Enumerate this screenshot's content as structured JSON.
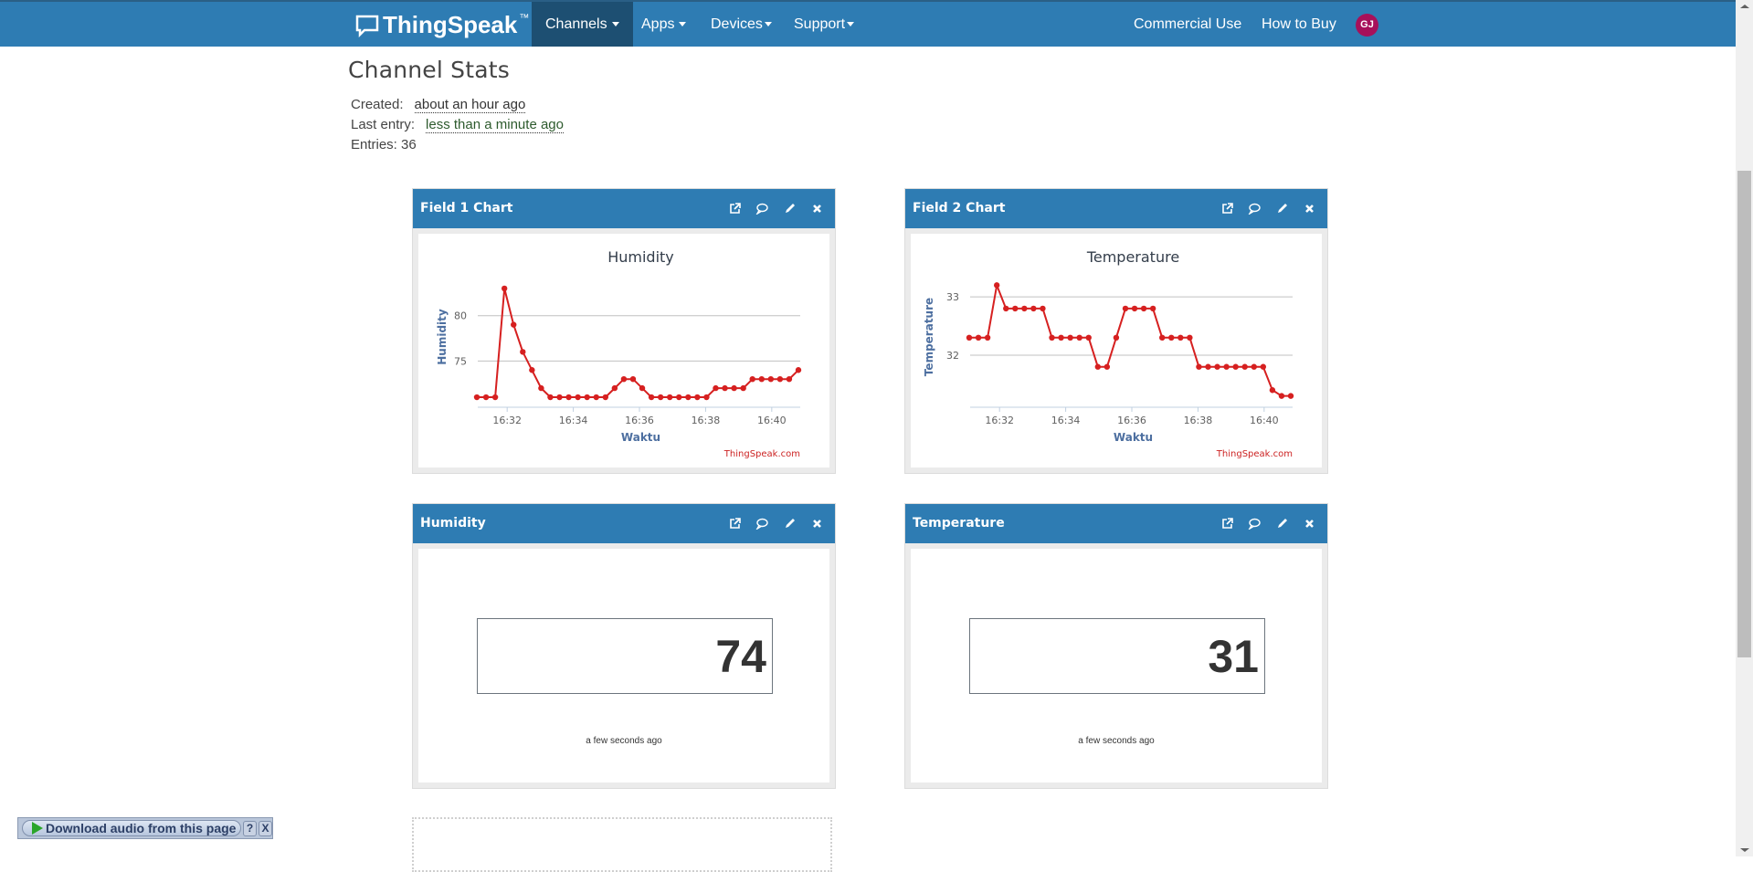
{
  "navbar": {
    "brand": "ThingSpeak",
    "brand_tm": "™",
    "items": [
      {
        "label": "Channels",
        "active": true
      },
      {
        "label": "Apps"
      },
      {
        "label": "Devices"
      },
      {
        "label": "Support"
      }
    ],
    "right_links": [
      "Commercial Use",
      "How to Buy"
    ],
    "avatar_initials": "GJ",
    "colors": {
      "bar": "#2e7cb3",
      "active": "#1d4f72",
      "avatar": "#a7105a"
    }
  },
  "page": {
    "title": "Channel Stats",
    "created_label": "Created:",
    "created_value": "about an hour ago",
    "last_entry_label": "Last entry:",
    "last_entry_value": "less than a minute ago",
    "entries_label": "Entries: 36"
  },
  "widgets": [
    {
      "title": "Field 1 Chart",
      "type": "chart",
      "chart_index": 0
    },
    {
      "title": "Field 2 Chart",
      "type": "chart",
      "chart_index": 1
    },
    {
      "title": "Humidity",
      "type": "numeric",
      "value": "74",
      "time": "a few seconds ago"
    },
    {
      "title": "Temperature",
      "type": "numeric",
      "value": "31",
      "time": "a few seconds ago"
    }
  ],
  "chart_data": [
    {
      "type": "line",
      "title": "Humidity",
      "xlabel": "Waktu",
      "ylabel": "Humidity",
      "credit": "ThingSpeak.com",
      "x_ticks": [
        "16:32",
        "16:34",
        "16:36",
        "16:38",
        "16:40"
      ],
      "y_ticks": [
        75,
        80
      ],
      "ylim": [
        70.5,
        84
      ],
      "color": "#d62020",
      "values": [
        71,
        71,
        71,
        83,
        79,
        76,
        74,
        72,
        71,
        71,
        71,
        71,
        71,
        71,
        71,
        72,
        73,
        73,
        72,
        71,
        71,
        71,
        71,
        71,
        71,
        71,
        72,
        72,
        72,
        72,
        73,
        73,
        73,
        73,
        73,
        74
      ]
    },
    {
      "type": "line",
      "title": "Temperature",
      "xlabel": "Waktu",
      "ylabel": "Temperature",
      "credit": "ThingSpeak.com",
      "x_ticks": [
        "16:32",
        "16:34",
        "16:36",
        "16:38",
        "16:40"
      ],
      "y_ticks": [
        32,
        33
      ],
      "ylim": [
        31.2,
        33.3
      ],
      "color": "#d62020",
      "values": [
        32.3,
        32.3,
        32.3,
        33.2,
        32.8,
        32.8,
        32.8,
        32.8,
        32.8,
        32.3,
        32.3,
        32.3,
        32.3,
        32.3,
        31.8,
        31.8,
        32.3,
        32.8,
        32.8,
        32.8,
        32.8,
        32.3,
        32.3,
        32.3,
        32.3,
        31.8,
        31.8,
        31.8,
        31.8,
        31.8,
        31.8,
        31.8,
        31.8,
        31.4,
        31.3,
        31.3
      ]
    }
  ],
  "audio_bar": {
    "label": "Download audio from this page",
    "help": "?",
    "close": "X"
  }
}
